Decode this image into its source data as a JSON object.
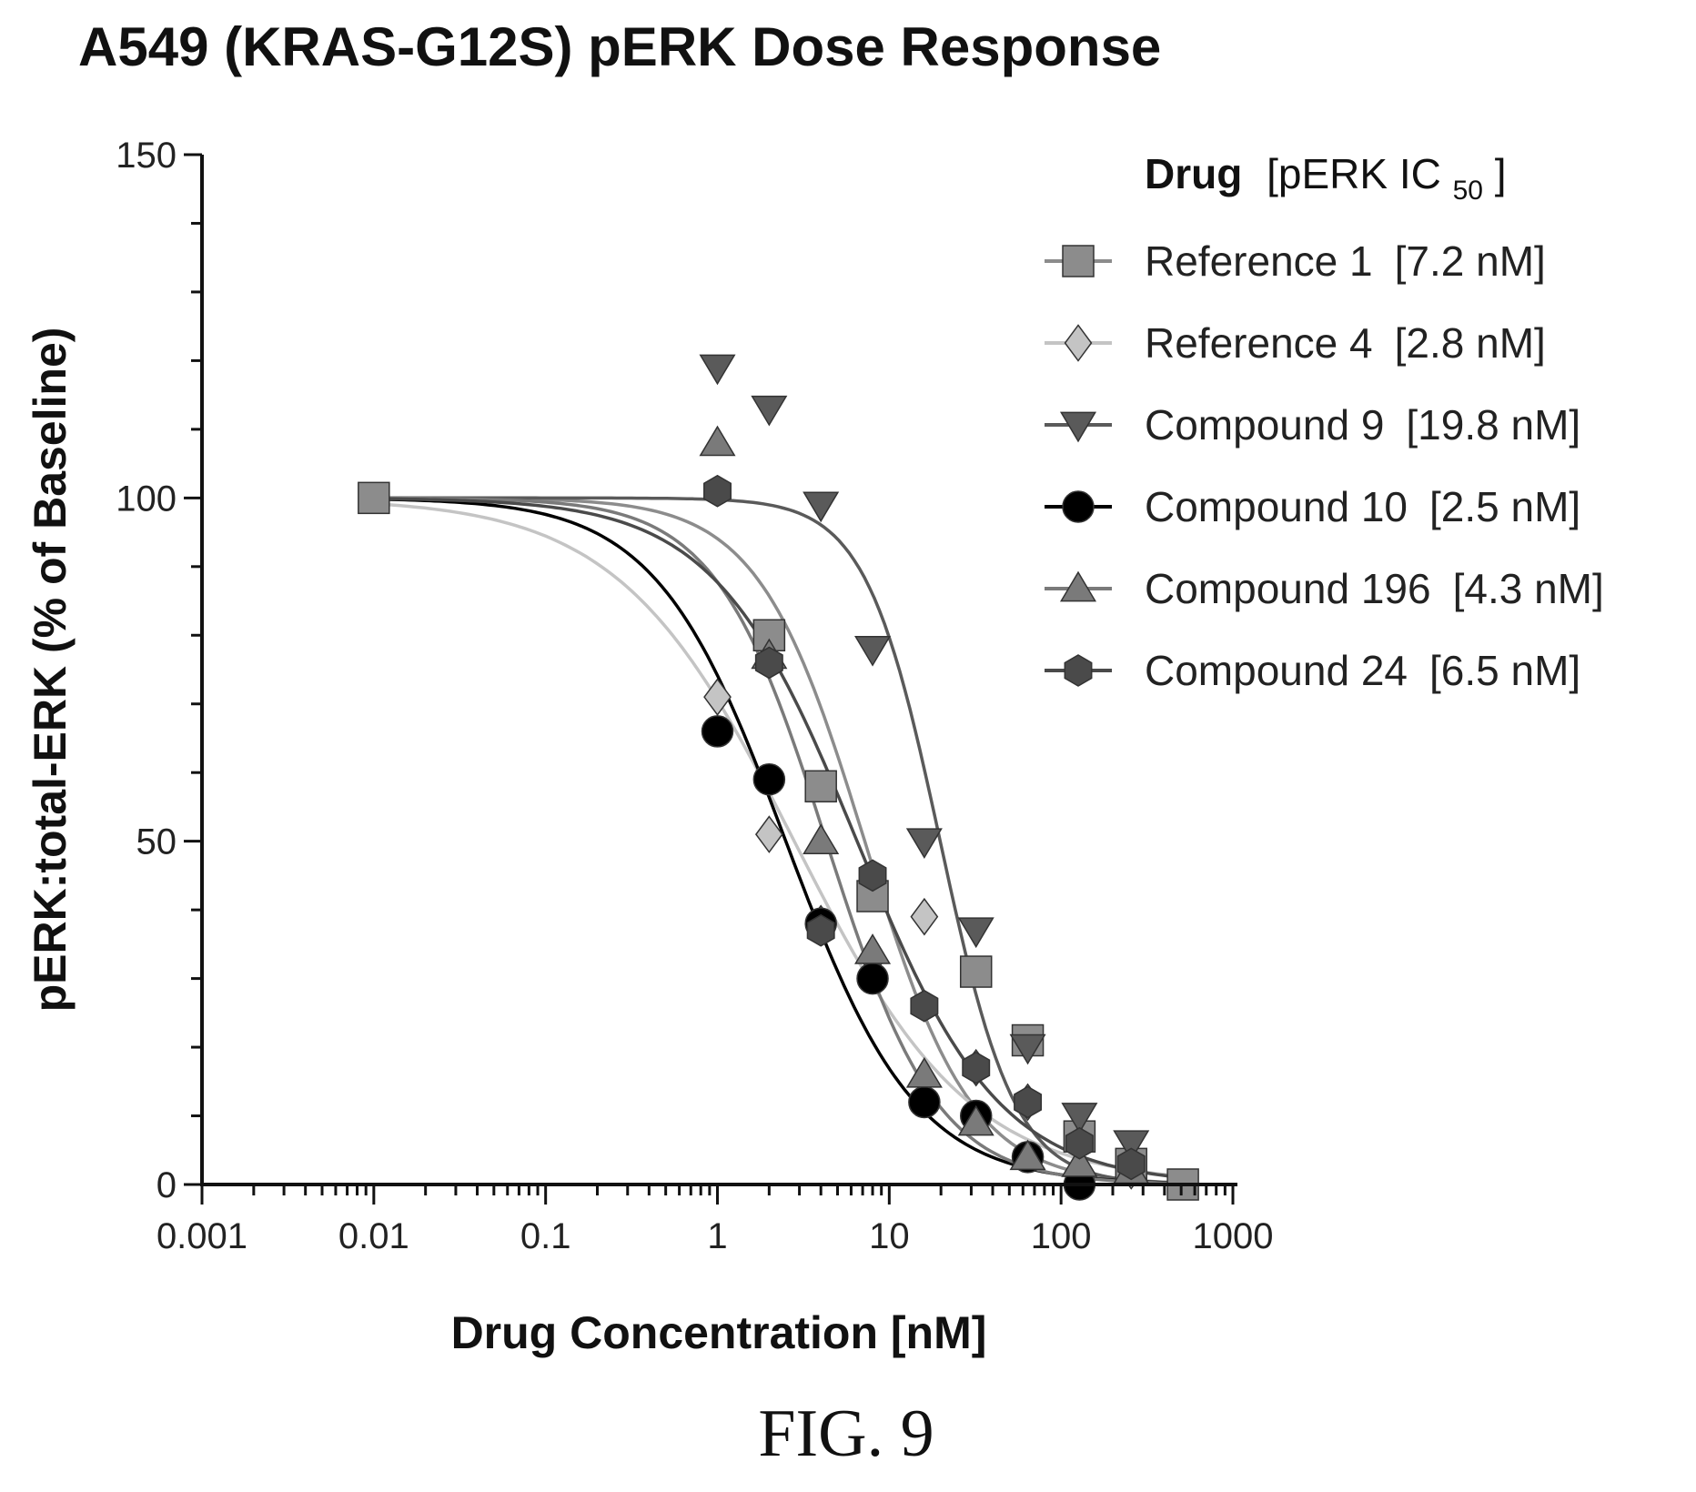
{
  "figure_label": "FIG. 9",
  "chart_data": {
    "type": "scatter",
    "title": "A549 (KRAS-G12S) pERK Dose Response",
    "xlabel": "Drug Concentration [nM]",
    "ylabel": "pERK:total-ERK (% of Baseline)",
    "x_scale": "log",
    "xlim": [
      0.001,
      1000
    ],
    "ylim": [
      0,
      150
    ],
    "x_ticks": [
      0.001,
      0.01,
      0.1,
      1,
      10,
      100,
      1000
    ],
    "x_tick_labels": [
      "0.001",
      "0.01",
      "0.1",
      "1",
      "10",
      "100",
      "1000"
    ],
    "y_ticks": [
      0,
      50,
      100,
      150
    ],
    "y_tick_labels": [
      "0",
      "50",
      "100",
      "150"
    ],
    "grid": false,
    "legend_position": "top-right",
    "legend": {
      "title_bold": "Drug",
      "title_rest": "[pERK IC",
      "title_sub": "50",
      "title_end": "]"
    },
    "series": [
      {
        "name": "Reference 1",
        "ic50_label": "[7.2 nM]",
        "ic50": 7.2,
        "marker": "square",
        "color": "#8c8c8c",
        "x": [
          0.01,
          2,
          4,
          8,
          32,
          64,
          128,
          256,
          512
        ],
        "y": [
          100,
          80,
          58,
          42,
          31,
          21,
          7,
          3,
          0
        ]
      },
      {
        "name": "Reference 4",
        "ic50_label": "[2.8 nM]",
        "ic50": 2.8,
        "marker": "diamond",
        "color": "#c4c4c4",
        "x": [
          1,
          2,
          4,
          8,
          16,
          32,
          64,
          128,
          256
        ],
        "y": [
          71,
          51,
          38,
          33,
          39,
          17,
          12,
          6,
          2
        ]
      },
      {
        "name": "Compound 9",
        "ic50_label": "[19.8 nM]",
        "ic50": 19.8,
        "marker": "triangle-down",
        "color": "#5a5a5a",
        "x": [
          1,
          2,
          4,
          8,
          16,
          32,
          64,
          128,
          256
        ],
        "y": [
          119,
          113,
          99,
          78,
          50,
          37,
          20,
          10,
          6
        ]
      },
      {
        "name": "Compound 10",
        "ic50_label": "[2.5 nM]",
        "ic50": 2.5,
        "marker": "circle",
        "color": "#000000",
        "x": [
          1,
          2,
          4,
          8,
          16,
          32,
          64,
          128
        ],
        "y": [
          66,
          59,
          38,
          30,
          12,
          10,
          4,
          0
        ]
      },
      {
        "name": "Compound 196",
        "ic50_label": "[4.3 nM]",
        "ic50": 4.3,
        "marker": "triangle-up",
        "color": "#7a7a7a",
        "x": [
          1,
          2,
          4,
          8,
          16,
          32,
          64,
          128,
          256
        ],
        "y": [
          108,
          77,
          50,
          34,
          16,
          9,
          4,
          3,
          2
        ]
      },
      {
        "name": "Compound 24",
        "ic50_label": "[6.5 nM]",
        "ic50": 6.5,
        "marker": "hexagon",
        "color": "#4a4a4a",
        "x": [
          1,
          2,
          4,
          8,
          16,
          32,
          64,
          128,
          256
        ],
        "y": [
          101,
          76,
          37,
          45,
          26,
          17,
          12,
          6,
          3
        ]
      }
    ]
  }
}
